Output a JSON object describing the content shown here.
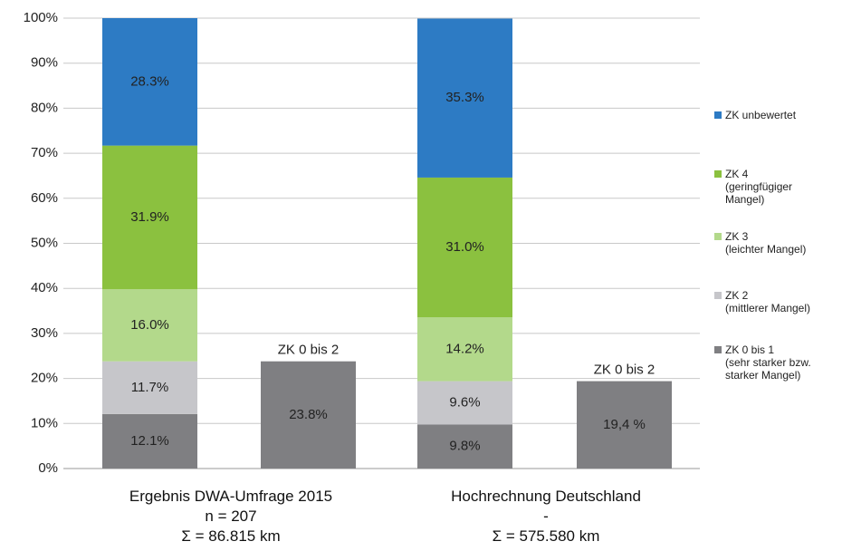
{
  "chart_data": {
    "type": "bar",
    "stacked": true,
    "categories": [
      [
        "Ergebnis DWA-Umfrage 2015",
        "n = 207",
        "Σ = 86.815 km"
      ],
      [
        "Hochrechnung Deutschland",
        "-",
        "Σ = 575.580 km"
      ]
    ],
    "series": [
      {
        "name": "ZK 0 bis 1\n(sehr starker bzw.\nstarker Mangel)",
        "color": "#7f7f82",
        "values": [
          12.1,
          9.8
        ],
        "value_labels": [
          "12.1%",
          "9.8%"
        ]
      },
      {
        "name": "ZK 2\n(mittlerer Mangel)",
        "color": "#c6c6ca",
        "values": [
          11.7,
          9.6
        ],
        "value_labels": [
          "11.7%",
          "9.6%"
        ]
      },
      {
        "name": "ZK 3\n(leichter Mangel)",
        "color": "#b3d98b",
        "values": [
          16.0,
          14.2
        ],
        "value_labels": [
          "16.0%",
          "14.2%"
        ]
      },
      {
        "name": "ZK 4\n(geringfügiger\nMangel)",
        "color": "#8bc13f",
        "values": [
          31.9,
          31.0
        ],
        "value_labels": [
          "31.9%",
          "31.0%"
        ]
      },
      {
        "name": "ZK unbewertet",
        "color": "#2d7bc4",
        "values": [
          28.3,
          35.3
        ],
        "value_labels": [
          "28.3%",
          "35.3%"
        ]
      }
    ],
    "summary_bars": {
      "label": "ZK 0 bis 2",
      "color": "#7f7f82",
      "values": [
        23.8,
        19.4
      ],
      "value_labels": [
        "23.8%",
        "19,4 %"
      ]
    },
    "ylim": [
      0,
      100
    ],
    "yticks": [
      {
        "value": 0,
        "label": "0%"
      },
      {
        "value": 10,
        "label": "10%"
      },
      {
        "value": 20,
        "label": "20%"
      },
      {
        "value": 30,
        "label": "30%"
      },
      {
        "value": 40,
        "label": "40%"
      },
      {
        "value": 50,
        "label": "50%"
      },
      {
        "value": 60,
        "label": "60%"
      },
      {
        "value": 70,
        "label": "70%"
      },
      {
        "value": 80,
        "label": "80%"
      },
      {
        "value": 90,
        "label": "90%"
      },
      {
        "value": 100,
        "label": "100%"
      }
    ],
    "grid": true
  }
}
